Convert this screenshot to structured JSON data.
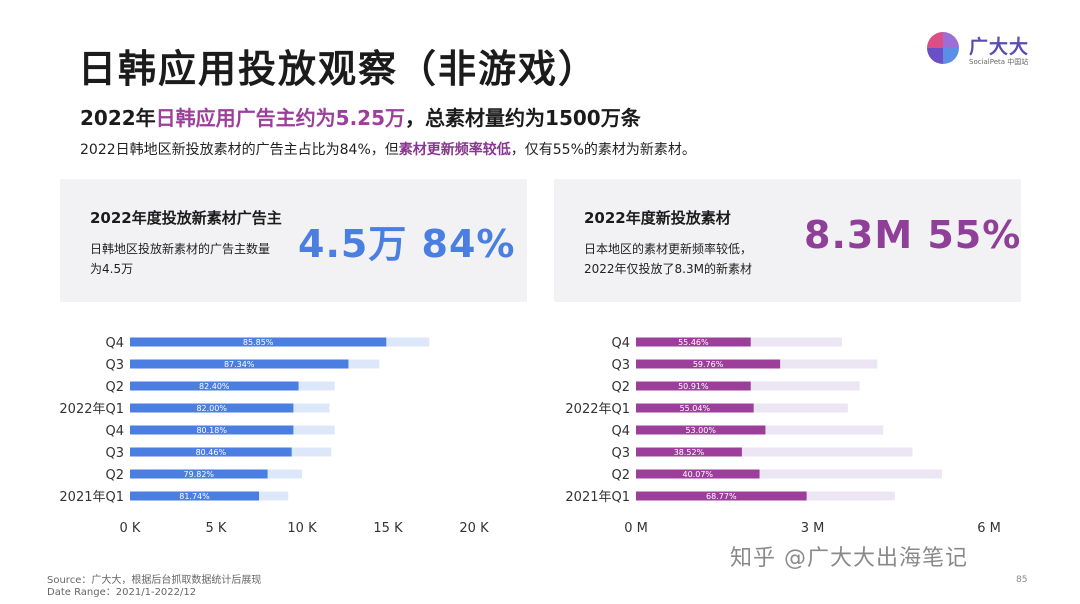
{
  "title": "日韩应用投放观察（非游戏）",
  "logo": {
    "name": "广大大",
    "sub": "SocialPeta 中国站"
  },
  "headline": {
    "part1": "2022年",
    "highlight": "日韩应用广告主约为5.25万",
    "part2": "，总素材量约为1500万条"
  },
  "subline": {
    "part1": "2022日韩地区新投放素材的广告主占比为84%，但",
    "highlight": "素材更新频率较低",
    "part2": "，仅有55%的素材为新素材。"
  },
  "cards": {
    "left": {
      "title": "2022年度投放新素材广告主",
      "desc": "日韩地区投放新素材的广告主数量为4.5万",
      "big": "4.5万 84%"
    },
    "right": {
      "title": "2022年度新投放素材",
      "desc": "日本地区的素材更新频率较低，2022年仅投放了8.3M的新素材",
      "big": "8.3M 55%"
    }
  },
  "colors": {
    "blue": "#4a7ee0",
    "blue_light": "#dde7fa",
    "purple": "#9b3f9b",
    "purple_light": "#ece5f3"
  },
  "chart_data": [
    {
      "type": "bar",
      "orientation": "horizontal",
      "stacked": "overlay",
      "categories": [
        "Q4",
        "Q3",
        "Q2",
        "2022年Q1",
        "Q4",
        "Q3",
        "Q2",
        "2021年Q1"
      ],
      "series": [
        {
          "values": [
            14.9,
            12.7,
            9.8,
            9.5,
            9.5,
            9.4,
            8.0,
            7.5
          ]
        },
        {
          "values": [
            17.4,
            14.5,
            11.9,
            11.6,
            11.9,
            11.7,
            10.0,
            9.2
          ]
        }
      ],
      "data_labels": [
        "85.85%",
        "87.34%",
        "82.40%",
        "82.00%",
        "80.18%",
        "80.46%",
        "79.82%",
        "81.74%"
      ],
      "xticks": [
        "0 K",
        "5 K",
        "10 K",
        "15 K",
        "20 K"
      ],
      "xlim": [
        0,
        20
      ],
      "unit": "K"
    },
    {
      "type": "bar",
      "orientation": "horizontal",
      "stacked": "overlay",
      "categories": [
        "Q4",
        "Q3",
        "Q2",
        "2022年Q1",
        "Q4",
        "Q3",
        "Q2",
        "2021年Q1"
      ],
      "series": [
        {
          "values": [
            1.95,
            2.45,
            1.95,
            2.0,
            2.2,
            1.8,
            2.1,
            2.9
          ]
        },
        {
          "values": [
            3.5,
            4.1,
            3.8,
            3.6,
            4.2,
            4.7,
            5.2,
            4.4
          ]
        }
      ],
      "data_labels": [
        "55.46%",
        "59.76%",
        "50.91%",
        "55.04%",
        "53.00%",
        "38.52%",
        "40.07%",
        "68.77%"
      ],
      "xticks": [
        "0 M",
        "3 M",
        "6 M"
      ],
      "xlim": [
        0,
        6
      ],
      "unit": "M"
    }
  ],
  "source": {
    "line1": "Source：广大大，根据后台抓取数据统计后展现",
    "line2": "Date Range：2021/1-2022/12"
  },
  "watermark": "知乎 @广大大出海笔记",
  "page_number": "85"
}
